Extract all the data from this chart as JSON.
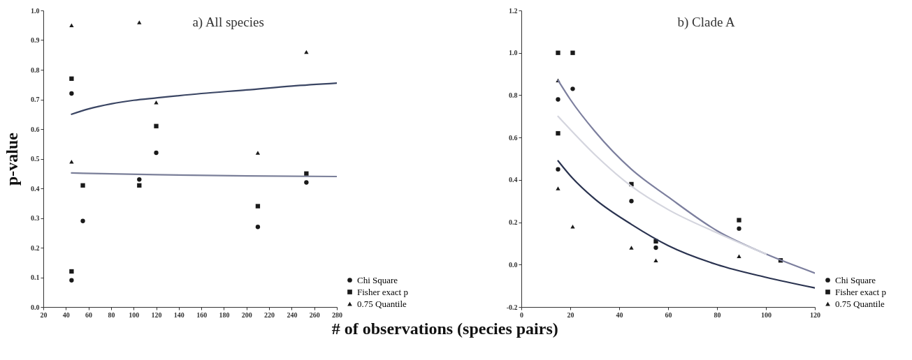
{
  "chart_data": [
    {
      "type": "scatter",
      "title": "a) All species",
      "xlabel": "# of observations (species pairs)",
      "ylabel": "p-value",
      "xlim": [
        20,
        280
      ],
      "xticks": [
        20,
        40,
        60,
        80,
        100,
        120,
        140,
        160,
        180,
        200,
        220,
        240,
        260,
        280
      ],
      "ylim": [
        0,
        1
      ],
      "yticks": [
        {
          "value": 0,
          "label": "0.0"
        },
        {
          "value": 0.1,
          "label": "0.1"
        },
        {
          "value": 0.2,
          "label": "0.2"
        },
        {
          "value": 0.3,
          "label": "0.3"
        },
        {
          "value": 0.4,
          "label": "0.4"
        },
        {
          "value": 0.5,
          "label": "0.5"
        },
        {
          "value": 0.6,
          "label": "0.6"
        },
        {
          "value": 0.7,
          "label": "0.7"
        },
        {
          "value": 0.8,
          "label": "0.8"
        },
        {
          "value": 0.9,
          "label": "0.9"
        },
        {
          "value": 1,
          "label": "1.0"
        }
      ],
      "legend": "bottom right",
      "series": [
        {
          "name": "Chi Square",
          "type": "scatter",
          "marker": "circle",
          "color": "#1a1a1a",
          "x": [
            45,
            45,
            55,
            105,
            120,
            210,
            253
          ],
          "values": [
            0.72,
            0.09,
            0.29,
            0.43,
            0.52,
            0.27,
            0.42
          ]
        },
        {
          "name": "Fisher exact p",
          "type": "scatter",
          "marker": "square",
          "color": "#1a1a1a",
          "x": [
            45,
            45,
            55,
            105,
            120,
            210,
            253
          ],
          "values": [
            0.77,
            0.12,
            0.41,
            0.41,
            0.61,
            0.34,
            0.45
          ]
        },
        {
          "name": "0.75 Quantile",
          "type": "scatter",
          "marker": "triangle",
          "color": "#1a1a1a",
          "x": [
            45,
            45,
            105,
            120,
            210,
            253
          ],
          "values": [
            0.95,
            0.49,
            0.96,
            0.69,
            0.52,
            0.86
          ]
        },
        {
          "type": "line",
          "color": "#3a4563",
          "line_style": "solid",
          "x": [
            45,
            60,
            80,
            100,
            120,
            160,
            200,
            240,
            280
          ],
          "values": [
            0.65,
            0.668,
            0.685,
            0.697,
            0.705,
            0.72,
            0.732,
            0.745,
            0.755
          ]
        },
        {
          "type": "line",
          "color": "#7a7f99",
          "line_style": "solid",
          "x": [
            45,
            120,
            200,
            280
          ],
          "values": [
            0.452,
            0.446,
            0.442,
            0.44
          ]
        }
      ]
    },
    {
      "type": "scatter",
      "title": "b) Clade A",
      "xlim": [
        0,
        120
      ],
      "xticks": [
        0,
        20,
        40,
        60,
        80,
        100,
        120
      ],
      "ylim": [
        -0.2,
        1.2
      ],
      "yticks": [
        {
          "value": -0.2,
          "label": "-0.2"
        },
        {
          "value": 0,
          "label": "0.0"
        },
        {
          "value": 0.2,
          "label": "0.2"
        },
        {
          "value": 0.4,
          "label": "0.4"
        },
        {
          "value": 0.6,
          "label": "0.6"
        },
        {
          "value": 0.8,
          "label": "0.8"
        },
        {
          "value": 1,
          "label": "1.0"
        },
        {
          "value": 1.2,
          "label": "1.2"
        }
      ],
      "legend": "bottom right",
      "series": [
        {
          "name": "Chi Square",
          "type": "scatter",
          "marker": "circle",
          "color": "#1a1a1a",
          "x": [
            15,
            15,
            21,
            45,
            55,
            89
          ],
          "values": [
            0.78,
            0.45,
            0.83,
            0.3,
            0.08,
            0.17
          ]
        },
        {
          "name": "Fisher exact p",
          "type": "scatter",
          "marker": "square",
          "color": "#1a1a1a",
          "x": [
            15,
            15,
            21,
            45,
            55,
            89,
            106
          ],
          "values": [
            1.0,
            0.62,
            1.0,
            0.38,
            0.11,
            0.21,
            0.02
          ]
        },
        {
          "name": "0.75 Quantile",
          "type": "scatter",
          "marker": "triangle",
          "color": "#1a1a1a",
          "x": [
            15,
            15,
            21,
            45,
            55,
            89
          ],
          "values": [
            0.87,
            0.36,
            0.18,
            0.08,
            0.02,
            0.04
          ]
        },
        {
          "type": "line",
          "color": "#7c7f9e",
          "line_style": "solid",
          "x": [
            15,
            20,
            30,
            45,
            60,
            80,
            100,
            120
          ],
          "values": [
            0.87,
            0.78,
            0.63,
            0.45,
            0.32,
            0.16,
            0.05,
            -0.04
          ]
        },
        {
          "type": "line",
          "color": "#d4d5de",
          "line_style": "solid",
          "x": [
            15,
            30,
            45,
            60,
            80,
            100
          ],
          "values": [
            0.7,
            0.52,
            0.37,
            0.26,
            0.15,
            0.05
          ]
        },
        {
          "type": "line",
          "color": "#2a3350",
          "line_style": "solid",
          "x": [
            15,
            20,
            30,
            45,
            60,
            80,
            100,
            120
          ],
          "values": [
            0.49,
            0.42,
            0.31,
            0.19,
            0.09,
            0.0,
            -0.06,
            -0.11
          ]
        }
      ]
    }
  ]
}
